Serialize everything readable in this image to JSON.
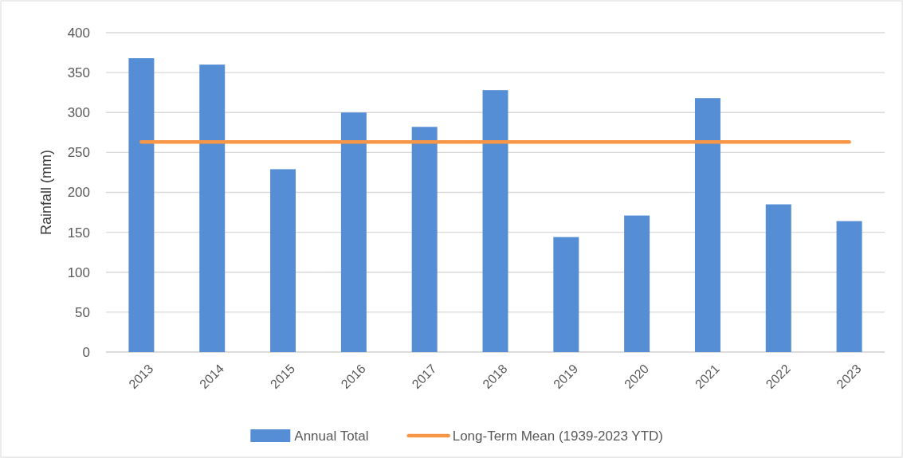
{
  "chart_data": {
    "type": "bar",
    "ylabel": "Rainfall (mm)",
    "categories": [
      "2013",
      "2014",
      "2015",
      "2016",
      "2017",
      "2018",
      "2019",
      "2020",
      "2021",
      "2022",
      "2023"
    ],
    "series": [
      {
        "name": "Annual Total",
        "color": "#558ed5",
        "values": [
          368,
          360,
          229,
          300,
          282,
          328,
          144,
          171,
          318,
          185,
          164
        ]
      },
      {
        "name": "Long-Term Mean (1939-2023 YTD)",
        "type": "line",
        "color": "#f79646",
        "values": [
          263,
          263,
          263,
          263,
          263,
          263,
          263,
          263,
          263,
          263,
          263
        ]
      }
    ],
    "ylim": [
      0,
      400
    ],
    "yticks": [
      0,
      50,
      100,
      150,
      200,
      250,
      300,
      350,
      400
    ],
    "grid": "y",
    "legend": "bottom"
  }
}
